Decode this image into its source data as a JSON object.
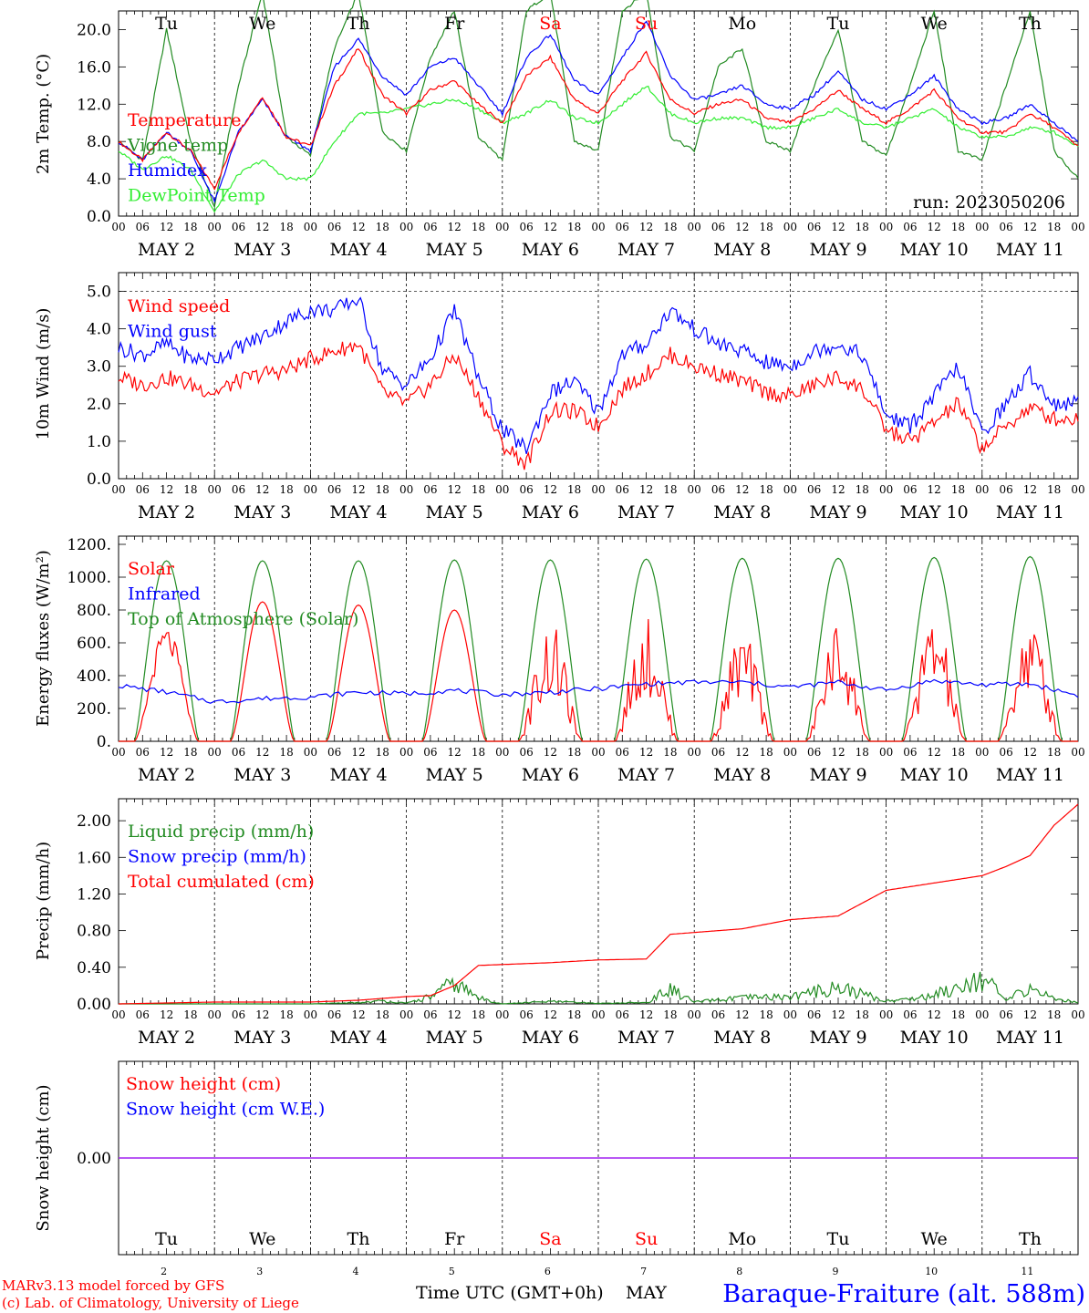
{
  "days": [
    "Tu",
    "We",
    "Th",
    "Fr",
    "Sa",
    "Su",
    "Mo",
    "Tu",
    "We",
    "Th"
  ],
  "day_colors": [
    "#000000",
    "#000000",
    "#000000",
    "#000000",
    "#ff0000",
    "#ff0000",
    "#000000",
    "#000000",
    "#000000",
    "#000000"
  ],
  "date_labels": [
    "MAY  2",
    "MAY  3",
    "MAY  4",
    "MAY  5",
    "MAY  6",
    "MAY  7",
    "MAY  8",
    "MAY  9",
    "MAY 10",
    "MAY 11"
  ],
  "hour_ticks": [
    "00",
    "06",
    "12",
    "18"
  ],
  "hour_end": "00",
  "run_label": "run: 2023050206",
  "bottom_day_numbers": [
    "2",
    "3",
    "4",
    "5",
    "6",
    "7",
    "8",
    "9",
    "10",
    "11"
  ],
  "footer": {
    "credit_line1": "MARv3.13 model forced by GFS",
    "credit_line2": "(c) Lab. of Climatology, University of Liege",
    "xaxis_label": "Time UTC (GMT+0h)",
    "month": "MAY",
    "station": "Baraque-Fraiture (alt. 588m)"
  },
  "colors": {
    "red": "#ff0000",
    "green": "#228b22",
    "blue": "#0000ff",
    "lightgreen": "#33ee33",
    "purple": "#a020f0"
  },
  "chart_data": [
    {
      "type": "line",
      "ylabel": "2m Temp. (°C)",
      "ylim": [
        0,
        22
      ],
      "yticks": [
        "0.0",
        "4.0",
        "8.0",
        "12.0",
        "16.0",
        "20.0"
      ],
      "ytick_values": [
        0,
        4,
        8,
        12,
        16,
        20
      ],
      "x_unit": "hours since May 2 00 UTC",
      "x": [
        0,
        6,
        12,
        18,
        24,
        30,
        36,
        42,
        48,
        54,
        60,
        66,
        72,
        78,
        84,
        90,
        96,
        102,
        108,
        114,
        120,
        126,
        132,
        138,
        144,
        150,
        156,
        162,
        168,
        174,
        180,
        186,
        192,
        198,
        204,
        210,
        216,
        222,
        228,
        234,
        240
      ],
      "series": [
        {
          "name": "Temperature",
          "color": "#ff0000",
          "values": [
            8.0,
            6.0,
            9.0,
            7.0,
            3.0,
            9.0,
            12.8,
            8.5,
            7.5,
            14.0,
            18.0,
            13.0,
            11.0,
            13.5,
            14.5,
            12.0,
            10.0,
            15.0,
            17.0,
            12.5,
            11.0,
            14.5,
            17.5,
            12.5,
            11.0,
            12.0,
            12.5,
            10.5,
            10.0,
            11.5,
            13.5,
            11.5,
            10.0,
            11.5,
            13.5,
            10.5,
            9.0,
            9.0,
            11.0,
            9.5,
            7.5
          ]
        },
        {
          "name": "Vigne temp",
          "color": "#228b22",
          "values": [
            8.0,
            6.0,
            20.0,
            8.0,
            1.0,
            14.0,
            24.0,
            8.5,
            6.5,
            18.0,
            24.0,
            9.0,
            7.0,
            17.0,
            22.0,
            8.5,
            6.0,
            22.0,
            24.0,
            8.0,
            7.0,
            22.0,
            24.0,
            8.5,
            7.0,
            16.0,
            18.0,
            8.0,
            7.0,
            14.0,
            20.0,
            8.0,
            6.5,
            14.0,
            22.0,
            7.0,
            6.0,
            14.0,
            22.0,
            7.0,
            4.0
          ]
        },
        {
          "name": "Humidex",
          "color": "#0000ff",
          "values": [
            8.0,
            6.0,
            9.0,
            7.0,
            1.5,
            9.0,
            12.5,
            8.5,
            7.0,
            16.0,
            19.0,
            15.0,
            13.0,
            16.0,
            17.0,
            14.0,
            11.0,
            17.0,
            19.5,
            14.5,
            13.0,
            17.0,
            21.0,
            15.0,
            12.5,
            13.0,
            14.0,
            12.0,
            11.5,
            13.0,
            15.5,
            12.5,
            11.5,
            13.0,
            15.0,
            11.5,
            10.0,
            10.5,
            12.0,
            10.0,
            8.0
          ]
        },
        {
          "name": "DewPoint Temp",
          "color": "#33ee33",
          "values": [
            7.0,
            5.0,
            6.5,
            5.0,
            0.5,
            4.5,
            6.0,
            4.0,
            4.0,
            8.0,
            11.0,
            11.0,
            11.5,
            12.0,
            12.5,
            11.5,
            10.0,
            11.0,
            12.5,
            10.5,
            10.0,
            12.0,
            14.0,
            11.0,
            10.0,
            10.5,
            10.5,
            9.5,
            9.5,
            10.5,
            11.5,
            10.0,
            9.5,
            10.5,
            11.5,
            9.5,
            8.5,
            8.5,
            9.5,
            9.0,
            7.5
          ]
        }
      ]
    },
    {
      "type": "line",
      "ylabel": "10m Wind (m/s)",
      "ylim": [
        0,
        5.5
      ],
      "yticks": [
        "0.0",
        "1.0",
        "2.0",
        "3.0",
        "4.0",
        "5.0"
      ],
      "ytick_values": [
        0,
        1,
        2,
        3,
        4,
        5
      ],
      "x": [
        0,
        6,
        12,
        18,
        24,
        30,
        36,
        42,
        48,
        54,
        60,
        66,
        72,
        78,
        84,
        90,
        96,
        102,
        108,
        114,
        120,
        126,
        132,
        138,
        144,
        150,
        156,
        162,
        168,
        174,
        180,
        186,
        192,
        198,
        204,
        210,
        216,
        222,
        228,
        234,
        240
      ],
      "series": [
        {
          "name": "Wind speed",
          "color": "#ff0000",
          "values": [
            2.7,
            2.5,
            2.7,
            2.5,
            2.3,
            2.6,
            2.8,
            2.9,
            3.2,
            3.4,
            3.6,
            2.3,
            2.0,
            2.5,
            3.3,
            2.2,
            0.9,
            0.4,
            1.8,
            1.8,
            1.4,
            2.4,
            2.8,
            3.3,
            3.0,
            2.8,
            2.6,
            2.3,
            2.2,
            2.5,
            2.7,
            2.4,
            1.3,
            1.0,
            1.5,
            2.0,
            0.8,
            1.4,
            1.9,
            1.6,
            1.6
          ]
        },
        {
          "name": "Wind gust",
          "color": "#0000ff",
          "values": [
            3.5,
            3.3,
            3.6,
            3.2,
            3.2,
            3.5,
            3.8,
            4.2,
            4.5,
            4.5,
            4.8,
            2.9,
            2.5,
            3.2,
            4.5,
            2.7,
            1.3,
            0.8,
            2.3,
            2.6,
            1.8,
            3.3,
            3.6,
            4.5,
            4.0,
            3.6,
            3.4,
            3.1,
            3.0,
            3.4,
            3.6,
            3.3,
            1.7,
            1.4,
            2.2,
            3.0,
            1.2,
            2.0,
            2.8,
            2.0,
            2.0
          ]
        }
      ]
    },
    {
      "type": "line",
      "ylabel": "Energy fluxes (W/m²)",
      "ylim": [
        0,
        1250
      ],
      "yticks": [
        "0.",
        "200.",
        "400.",
        "600.",
        "800.",
        "1000.",
        "1200."
      ],
      "ytick_values": [
        0,
        200,
        400,
        600,
        800,
        1000,
        1200
      ],
      "solar_peaks": [
        700,
        850,
        830,
        800,
        730,
        760,
        680,
        730,
        780,
        750
      ],
      "toa_peaks": [
        1100,
        1100,
        1100,
        1105,
        1105,
        1110,
        1115,
        1115,
        1120,
        1125
      ],
      "x": [
        0,
        12,
        24,
        36,
        48,
        60,
        72,
        84,
        96,
        108,
        120,
        132,
        144,
        156,
        168,
        180,
        192,
        204,
        216,
        228,
        240
      ],
      "series": [
        {
          "name": "Solar",
          "color": "#ff0000",
          "values": [
            0,
            700,
            0,
            850,
            0,
            830,
            0,
            800,
            0,
            730,
            0,
            760,
            0,
            680,
            0,
            730,
            0,
            780,
            0,
            750,
            0
          ]
        },
        {
          "name": "Infrared",
          "color": "#0000ff",
          "values": [
            340,
            300,
            240,
            260,
            270,
            300,
            290,
            310,
            285,
            300,
            320,
            350,
            360,
            360,
            330,
            360,
            310,
            370,
            345,
            350,
            280
          ]
        },
        {
          "name": "Top of Atmosphere (Solar)",
          "color": "#228b22",
          "values": [
            0,
            1100,
            0,
            1100,
            0,
            1100,
            0,
            1105,
            0,
            1105,
            0,
            1110,
            0,
            1115,
            0,
            1115,
            0,
            1120,
            0,
            1125,
            0
          ]
        }
      ]
    },
    {
      "type": "line",
      "ylabel": "Precip (mm/h)",
      "ylim": [
        0,
        2.24
      ],
      "yticks": [
        "0.00",
        "0.40",
        "0.80",
        "1.20",
        "1.60",
        "2.00"
      ],
      "ytick_values": [
        0,
        0.4,
        0.8,
        1.2,
        1.6,
        2.0
      ],
      "x": [
        0,
        24,
        48,
        60,
        66,
        72,
        78,
        84,
        90,
        96,
        108,
        120,
        132,
        138,
        144,
        156,
        168,
        180,
        192,
        198,
        204,
        216,
        222,
        228,
        234,
        240
      ],
      "series": [
        {
          "name": "Liquid precip (mm/h)",
          "color": "#228b22",
          "values": [
            0,
            0,
            0,
            0.02,
            0.05,
            0.01,
            0.12,
            0.35,
            0.1,
            0.0,
            0.04,
            0.01,
            0.02,
            0.25,
            0.03,
            0.1,
            0.12,
            0.28,
            0.05,
            0.08,
            0.15,
            0.45,
            0.05,
            0.28,
            0.08,
            0.03
          ]
        },
        {
          "name": "Snow precip (mm/h)",
          "color": "#0000ff",
          "values": [
            0,
            0,
            0,
            0,
            0,
            0,
            0,
            0,
            0,
            0,
            0,
            0,
            0,
            0,
            0,
            0,
            0,
            0,
            0,
            0,
            0,
            0,
            0,
            0,
            0,
            0
          ]
        },
        {
          "name": "Total cumulated (cm)",
          "color": "#ff0000",
          "values": [
            0.0,
            0.02,
            0.02,
            0.04,
            0.06,
            0.08,
            0.09,
            0.2,
            0.42,
            0.43,
            0.45,
            0.48,
            0.49,
            0.76,
            0.78,
            0.82,
            0.92,
            0.96,
            1.24,
            1.28,
            1.32,
            1.4,
            1.5,
            1.62,
            1.95,
            2.18
          ]
        }
      ]
    },
    {
      "type": "line",
      "ylabel": "Snow height (cm)",
      "yticks": [
        "0.00"
      ],
      "ytick_values": [
        0
      ],
      "x": [
        0,
        240
      ],
      "series": [
        {
          "name": "Snow height (cm)",
          "color": "#ff0000",
          "values": [
            0,
            0
          ]
        },
        {
          "name": "Snow height (cm W.E.)",
          "color": "#0000ff",
          "values": [
            0,
            0
          ]
        }
      ]
    }
  ]
}
